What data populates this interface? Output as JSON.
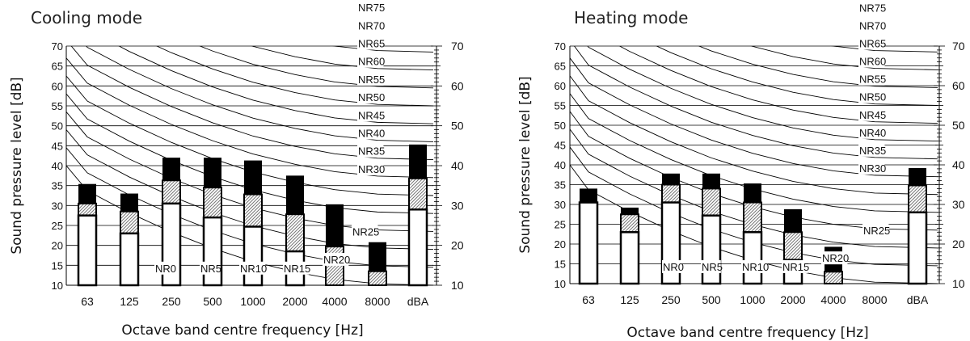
{
  "chart_data": [
    {
      "type": "bar",
      "title": "Cooling mode",
      "xlabel": "Octave band centre frequency [Hz]",
      "ylabel": "Sound pressure level [dB]",
      "categories": [
        "63",
        "125",
        "250",
        "500",
        "1000",
        "2000",
        "4000",
        "8000",
        "dBA"
      ],
      "ylim": [
        10,
        70
      ],
      "y_ticks": [
        "10",
        "15",
        "20",
        "25",
        "30",
        "35",
        "40",
        "45",
        "50",
        "55",
        "60",
        "65",
        "70"
      ],
      "y_ticks_right": [
        "10",
        "20",
        "30",
        "40",
        "50",
        "60",
        "70"
      ],
      "grid": "horizontal",
      "series": [
        {
          "values": [
            27.5,
            23,
            30.5,
            27,
            24.7,
            18.5,
            0,
            0,
            29
          ]
        },
        {
          "values": [
            30.5,
            28.5,
            36.3,
            34.5,
            32.8,
            27.8,
            19.7,
            13.5,
            36.8
          ]
        },
        {
          "values": [
            35.4,
            33,
            42,
            42,
            41.3,
            37.5,
            30.3,
            20.8,
            45.3
          ]
        }
      ],
      "nr_curves": [
        "NR0",
        "NR5",
        "NR10",
        "NR15",
        "NR20",
        "NR25",
        "NR30",
        "NR35",
        "NR40",
        "NR45",
        "NR50",
        "NR55",
        "NR60",
        "NR65",
        "NR70",
        "NR75"
      ]
    },
    {
      "type": "bar",
      "title": "Heating mode",
      "xlabel": "Octave band centre frequency [Hz]",
      "ylabel": "Sound pressure level [dB]",
      "categories": [
        "63",
        "125",
        "250",
        "500",
        "1000",
        "2000",
        "4000",
        "8000",
        "dBA"
      ],
      "ylim": [
        10,
        70
      ],
      "y_ticks": [
        "10",
        "15",
        "20",
        "25",
        "30",
        "35",
        "40",
        "45",
        "50",
        "55",
        "60",
        "65",
        "70"
      ],
      "y_ticks_right": [
        "10",
        "20",
        "30",
        "40",
        "50",
        "60",
        "70"
      ],
      "grid": "horizontal",
      "series": [
        {
          "values": [
            30.5,
            23,
            30.5,
            27.2,
            23,
            16,
            0,
            0,
            28
          ]
        },
        {
          "values": [
            30.5,
            27.5,
            35,
            34,
            30.5,
            23,
            13,
            0,
            34.8
          ]
        },
        {
          "values": [
            34,
            29.2,
            37.8,
            37.8,
            35.3,
            28.8,
            19.3,
            10,
            39.2
          ]
        }
      ],
      "nr_curves": [
        "NR0",
        "NR5",
        "NR10",
        "NR15",
        "NR20",
        "NR25",
        "NR30",
        "NR35",
        "NR40",
        "NR45",
        "NR50",
        "NR55",
        "NR60",
        "NR65",
        "NR70",
        "NR75"
      ]
    }
  ]
}
